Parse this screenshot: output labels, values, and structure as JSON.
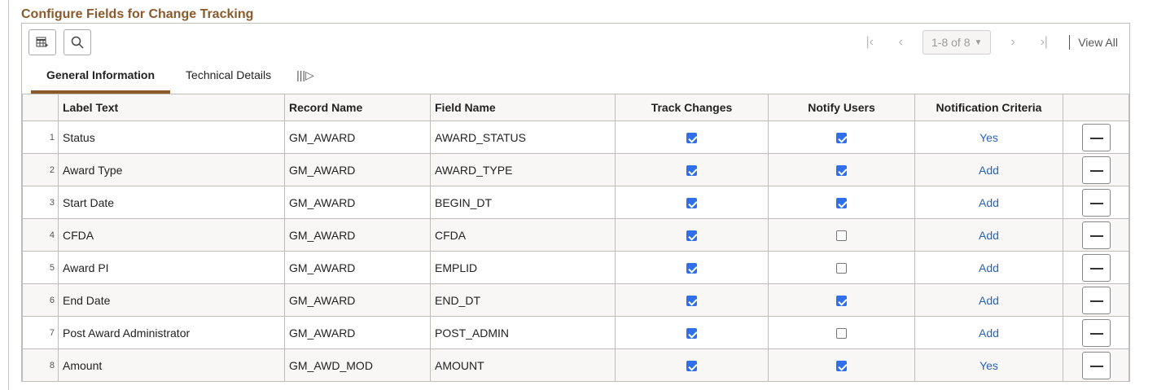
{
  "title": "Configure Fields for Change Tracking",
  "toolbar": {
    "personalize_icon": "grid-personalize-icon",
    "search_icon": "search-icon"
  },
  "pager": {
    "range": "1-8 of 8",
    "view_all": "View All"
  },
  "tabs": [
    {
      "label": "General Information",
      "active": true
    },
    {
      "label": "Technical Details",
      "active": false
    }
  ],
  "columns": [
    "Label Text",
    "Record Name",
    "Field Name",
    "Track Changes",
    "Notify Users",
    "Notification Criteria"
  ],
  "rows": [
    {
      "n": "1",
      "label": "Status",
      "record": "GM_AWARD",
      "field": "AWARD_STATUS",
      "track": true,
      "notify": true,
      "criteria": "Yes"
    },
    {
      "n": "2",
      "label": "Award Type",
      "record": "GM_AWARD",
      "field": "AWARD_TYPE",
      "track": true,
      "notify": true,
      "criteria": "Add"
    },
    {
      "n": "3",
      "label": "Start Date",
      "record": "GM_AWARD",
      "field": "BEGIN_DT",
      "track": true,
      "notify": true,
      "criteria": "Add"
    },
    {
      "n": "4",
      "label": "CFDA",
      "record": "GM_AWARD",
      "field": "CFDA",
      "track": true,
      "notify": false,
      "criteria": "Add"
    },
    {
      "n": "5",
      "label": "Award PI",
      "record": "GM_AWARD",
      "field": "EMPLID",
      "track": true,
      "notify": false,
      "criteria": "Add"
    },
    {
      "n": "6",
      "label": "End Date",
      "record": "GM_AWARD",
      "field": "END_DT",
      "track": true,
      "notify": true,
      "criteria": "Add"
    },
    {
      "n": "7",
      "label": "Post Award Administrator",
      "record": "GM_AWARD",
      "field": "POST_ADMIN",
      "track": true,
      "notify": false,
      "criteria": "Add"
    },
    {
      "n": "8",
      "label": "Amount",
      "record": "GM_AWD_MOD",
      "field": "AMOUNT",
      "track": true,
      "notify": true,
      "criteria": "Yes"
    }
  ],
  "colors": {
    "title": "#8b5a2b",
    "link": "#2a63b8",
    "checkbox": "#2f6fea"
  }
}
